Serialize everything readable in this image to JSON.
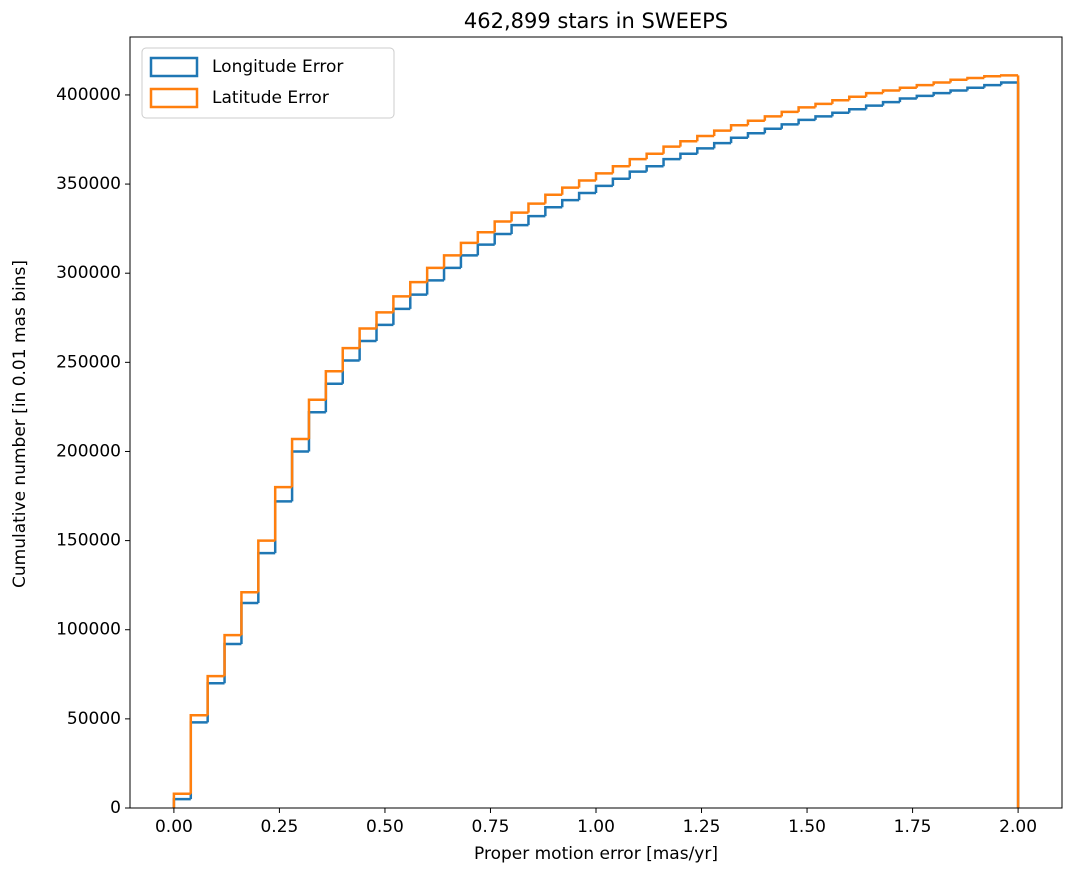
{
  "chart_data": {
    "type": "step-histogram",
    "title": "462,899 stars in SWEEPS",
    "x_label": "Proper motion error [mas/yr]",
    "y_label": "Cumulative number [in 0.01 mas bins]",
    "bins": [
      0,
      0.04,
      0.08,
      0.12,
      0.16,
      0.2,
      0.24,
      0.28,
      0.32,
      0.36,
      0.4,
      0.44,
      0.48,
      0.52,
      0.56,
      0.6,
      0.64,
      0.68,
      0.72,
      0.76,
      0.8,
      0.84,
      0.88,
      0.92,
      0.96,
      1.0,
      1.04,
      1.08,
      1.12,
      1.16,
      1.2,
      1.24,
      1.28,
      1.32,
      1.36,
      1.4,
      1.44,
      1.48,
      1.52,
      1.56,
      1.6,
      1.64,
      1.68,
      1.72,
      1.76,
      1.8,
      1.84,
      1.88,
      1.92,
      1.96,
      2.0
    ],
    "series": [
      {
        "name": "Longitude Error",
        "color": "#1f77b4",
        "values": [
          5000,
          48000,
          70000,
          92000,
          115000,
          143000,
          172000,
          200000,
          222000,
          238000,
          251000,
          262000,
          271000,
          280000,
          288000,
          296000,
          303000,
          310000,
          316000,
          322000,
          327000,
          332000,
          337000,
          341000,
          345000,
          349000,
          353000,
          357000,
          360000,
          364000,
          367000,
          370000,
          373000,
          376000,
          378500,
          381000,
          383500,
          386000,
          388000,
          390000,
          392000,
          394000,
          396000,
          398000,
          399500,
          401000,
          402500,
          404000,
          405500,
          407000
        ]
      },
      {
        "name": "Latitude Error",
        "color": "#ff7f0e",
        "values": [
          8000,
          52000,
          74000,
          97000,
          121000,
          150000,
          180000,
          207000,
          229000,
          245000,
          258000,
          269000,
          278000,
          287000,
          295000,
          303000,
          310000,
          317000,
          323000,
          329000,
          334000,
          339000,
          344000,
          348000,
          352000,
          356000,
          360000,
          364000,
          367000,
          371000,
          374000,
          377000,
          380000,
          383000,
          385500,
          388000,
          390500,
          393000,
          395000,
          397000,
          399000,
          401000,
          402500,
          404000,
          405500,
          407000,
          408500,
          409500,
          410500,
          411000
        ]
      }
    ],
    "xlim": [
      -0.104,
      2.104
    ],
    "ylim": [
      0,
      432500
    ],
    "xticks": [
      {
        "value": 0,
        "label": "0.00"
      },
      {
        "value": 0.25,
        "label": "0.25"
      },
      {
        "value": 0.5,
        "label": "0.50"
      },
      {
        "value": 0.75,
        "label": "0.75"
      },
      {
        "value": 1,
        "label": "1.00"
      },
      {
        "value": 1.25,
        "label": "1.25"
      },
      {
        "value": 1.5,
        "label": "1.50"
      },
      {
        "value": 1.75,
        "label": "1.75"
      },
      {
        "value": 2,
        "label": "2.00"
      }
    ],
    "yticks": [
      0,
      50000,
      100000,
      150000,
      200000,
      250000,
      300000,
      350000,
      400000
    ],
    "legend": "upper-left"
  }
}
